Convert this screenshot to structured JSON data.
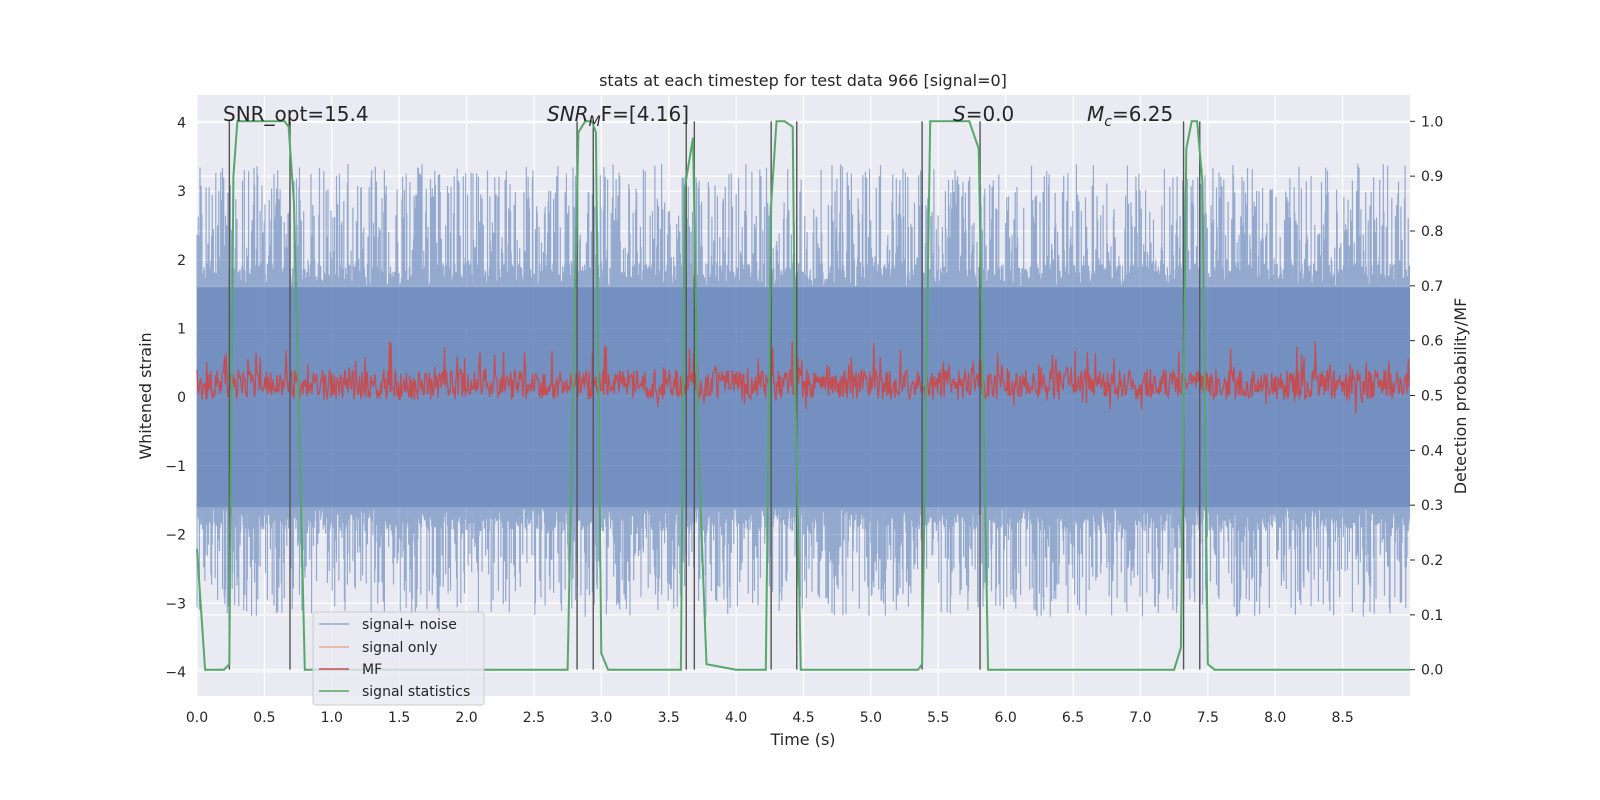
{
  "chart_data": {
    "type": "line",
    "title": "stats at each timestep for test data 966 [signal=0]",
    "xlabel": "Time (s)",
    "ylabel": "Whitened strain",
    "y2label": "Detection probability/MF",
    "xlim": [
      0.0,
      9.0
    ],
    "ylim": [
      -4.35,
      4.4
    ],
    "y2lim": [
      -0.048,
      1.048
    ],
    "grid": true,
    "legend_position": "lower-left",
    "x_ticks": [
      "0.0",
      "0.5",
      "1.0",
      "1.5",
      "2.0",
      "2.5",
      "3.0",
      "3.5",
      "4.0",
      "4.5",
      "5.0",
      "5.5",
      "6.0",
      "6.5",
      "7.0",
      "7.5",
      "8.0",
      "8.5"
    ],
    "y_ticks": [
      "−4",
      "−3",
      "−2",
      "−1",
      "0",
      "1",
      "2",
      "3",
      "4"
    ],
    "y2_ticks": [
      "0.0",
      "0.1",
      "0.2",
      "0.3",
      "0.4",
      "0.5",
      "0.6",
      "0.7",
      "0.8",
      "0.9",
      "1.0"
    ],
    "annotations": {
      "snr_opt": "SNR_opt=15.4",
      "snr_mf_base": "SNR",
      "snr_mf_sub": "M",
      "snr_mf_rest": "F=[4.16]",
      "s_base": "S",
      "s_rest": "=0.0",
      "mc_base": "M",
      "mc_sub": "c",
      "mc_rest": "=6.25"
    },
    "series": [
      {
        "name": "signal+ noise",
        "color": "#4c72b0",
        "description_kind": "noise band",
        "amplitude_typical": 1.6,
        "amplitude_peak": 3.4
      },
      {
        "name": "signal only",
        "color": "#dd8452",
        "values": []
      },
      {
        "name": "MF",
        "color": "#c44e52",
        "range": [
          0.05,
          0.95
        ]
      },
      {
        "name": "signal statistics",
        "color": "#55a868",
        "x": [
          0.0,
          0.06,
          0.1,
          0.2,
          0.24,
          0.27,
          0.3,
          0.45,
          0.5,
          0.65,
          0.68,
          0.72,
          0.8,
          1.0,
          1.5,
          2.0,
          2.5,
          2.75,
          2.79,
          2.83,
          2.88,
          2.93,
          2.96,
          3.0,
          3.05,
          3.3,
          3.5,
          3.59,
          3.62,
          3.68,
          3.72,
          3.78,
          4.0,
          4.18,
          4.22,
          4.26,
          4.3,
          4.36,
          4.42,
          4.44,
          4.48,
          5.0,
          5.35,
          5.38,
          5.44,
          5.6,
          5.73,
          5.8,
          5.87,
          6.0,
          6.5,
          7.0,
          7.25,
          7.3,
          7.34,
          7.38,
          7.42,
          7.46,
          7.5,
          7.55,
          7.7,
          8.0,
          8.5,
          9.0
        ],
        "y": [
          0.22,
          0.0,
          0.0,
          0.0,
          0.01,
          0.9,
          1.0,
          1.0,
          1.0,
          1.0,
          0.99,
          0.85,
          0.0,
          0.0,
          0.0,
          0.0,
          0.0,
          0.0,
          0.5,
          0.98,
          1.0,
          1.0,
          0.98,
          0.03,
          0.0,
          0.0,
          0.0,
          0.0,
          0.88,
          0.97,
          0.4,
          0.01,
          0.0,
          0.0,
          0.0,
          0.85,
          1.0,
          1.0,
          0.99,
          0.5,
          0.0,
          0.0,
          0.0,
          0.01,
          1.0,
          1.0,
          1.0,
          0.95,
          0.0,
          0.0,
          0.0,
          0.0,
          0.0,
          0.04,
          0.95,
          1.0,
          1.0,
          0.89,
          0.01,
          0.0,
          0.0,
          0.0,
          0.0,
          0.0
        ]
      }
    ],
    "vertical_lines_x": [
      0.24,
      0.69,
      2.82,
      2.94,
      3.63,
      3.69,
      4.26,
      4.45,
      5.38,
      5.81,
      7.32,
      7.44
    ]
  }
}
